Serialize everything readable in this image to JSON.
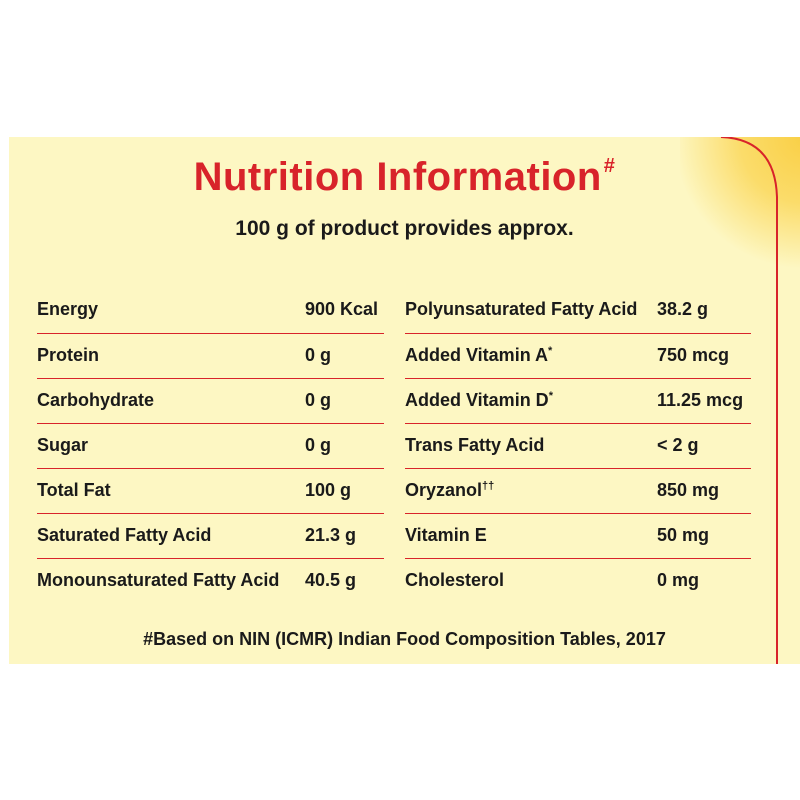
{
  "title": {
    "text": "Nutrition Information",
    "mark": "#"
  },
  "subtitle": "100 g of product provides approx.",
  "left_rows": [
    {
      "name": "Energy",
      "value": "900 Kcal"
    },
    {
      "name": "Protein",
      "value": "0 g"
    },
    {
      "name": "Carbohydrate",
      "value": "0 g"
    },
    {
      "name": "Sugar",
      "value": "0 g"
    },
    {
      "name": "Total Fat",
      "value": "100 g"
    },
    {
      "name": "Saturated Fatty Acid",
      "value": "21.3 g"
    },
    {
      "name": "Monounsaturated Fatty Acid",
      "value": "40.5 g"
    }
  ],
  "right_rows": [
    {
      "name": "Polyunsaturated Fatty Acid",
      "mark": "",
      "value": "38.2 g"
    },
    {
      "name": "Added Vitamin A",
      "mark": "*",
      "value": "750 mcg"
    },
    {
      "name": "Added Vitamin D",
      "mark": "*",
      "value": "11.25 mcg"
    },
    {
      "name": "Trans Fatty Acid",
      "mark": "",
      "value": "< 2 g"
    },
    {
      "name": "Oryzanol",
      "mark": "††",
      "value": "850 mg"
    },
    {
      "name": "Vitamin E",
      "mark": "",
      "value": "50 mg"
    },
    {
      "name": "Cholesterol",
      "mark": "",
      "value": "0 mg"
    }
  ],
  "footnote": "#Based on NIN (ICMR) Indian Food Composition Tables, 2017",
  "colors": {
    "background": "#fdf7c3",
    "accent_red": "#d8232a",
    "corner_yellow": "#f9cf45",
    "text": "#1a1a1a"
  }
}
